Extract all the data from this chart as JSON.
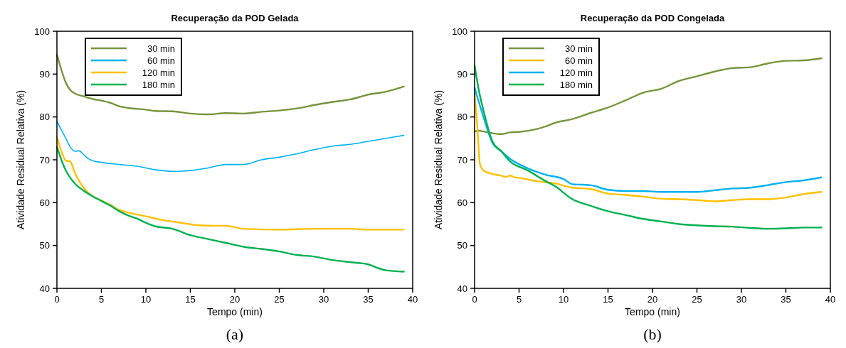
{
  "chart_data": [
    {
      "type": "line",
      "title": "Recuperação da POD Gelada",
      "xlabel": "Tempo (min)",
      "ylabel": "Atividade Residual Relativa (%)",
      "annotations": [
        "(a)"
      ],
      "xlim": [
        0,
        40
      ],
      "xticks": [
        0,
        5,
        10,
        15,
        20,
        25,
        30,
        35,
        40
      ],
      "ylim": [
        40,
        100
      ],
      "yticks": [
        40,
        50,
        60,
        70,
        80,
        90,
        100
      ],
      "grid": false,
      "legend": "top left",
      "marker": "none",
      "line_style": "solid",
      "series": [
        {
          "name": "30 min",
          "color": "#77933c",
          "x": [
            0,
            0.5,
            1,
            1.5,
            2,
            3,
            4,
            5,
            6,
            7,
            8,
            10,
            11,
            13,
            15,
            17,
            19,
            21,
            23,
            25,
            27,
            29,
            31,
            33,
            35,
            37,
            39
          ],
          "values": [
            94.5,
            91,
            88,
            86.3,
            85.5,
            84.8,
            84.2,
            83.8,
            83.3,
            82.5,
            82.1,
            81.7,
            81.4,
            81.3,
            80.8,
            80.6,
            80.9,
            80.8,
            81.2,
            81.5,
            82,
            82.8,
            83.5,
            84.1,
            85.2,
            85.9,
            87.1
          ]
        },
        {
          "name": "60 min",
          "color": "#00b0f0",
          "x": [
            0,
            0.5,
            1,
            1.5,
            2,
            2.5,
            3,
            3.5,
            4,
            5,
            7,
            9,
            11,
            13,
            15,
            17,
            19,
            21,
            23,
            25,
            27,
            29,
            31,
            33,
            35,
            37,
            39
          ],
          "values": [
            79,
            77,
            75,
            73,
            72,
            72.1,
            71.2,
            70.3,
            69.8,
            69.4,
            68.9,
            68.5,
            67.7,
            67.3,
            67.5,
            68.1,
            68.9,
            68.9,
            70,
            70.6,
            71.4,
            72.4,
            73.2,
            73.6,
            74.3,
            75,
            75.7
          ]
        },
        {
          "name": "120 min",
          "color": "#ffc000",
          "x": [
            0,
            0.5,
            1,
            1.5,
            2,
            3,
            4,
            5,
            6,
            7,
            8,
            10,
            12,
            14,
            16,
            18,
            19,
            21,
            25,
            29,
            33,
            35,
            39
          ],
          "values": [
            75.3,
            72,
            69.8,
            69.6,
            67,
            63.5,
            61.5,
            60.5,
            59.5,
            58.3,
            57.7,
            56.8,
            55.9,
            55.3,
            54.7,
            54.6,
            54.6,
            53.9,
            53.7,
            53.9,
            53.9,
            53.7,
            53.7
          ]
        },
        {
          "name": "180 min",
          "color": "#00b050",
          "x": [
            0,
            0.5,
            1,
            2,
            3,
            4,
            5,
            6,
            7,
            8,
            9,
            10,
            11,
            13,
            15,
            17,
            19,
            21,
            23,
            25,
            27,
            29,
            31,
            33,
            35,
            36,
            37,
            39
          ],
          "values": [
            73,
            70,
            67.5,
            64.5,
            62.8,
            61.5,
            60.4,
            59.3,
            58,
            57,
            56.3,
            55.3,
            54.5,
            53.9,
            52.4,
            51.5,
            50.6,
            49.7,
            49.2,
            48.6,
            47.8,
            47.4,
            46.6,
            46.1,
            45.6,
            44.8,
            44.2,
            43.9
          ]
        }
      ]
    },
    {
      "type": "line",
      "title": "Recuperação da POD Congelada",
      "xlabel": "Tempo (min)",
      "ylabel": "Atividade Residual Relativa (%)",
      "annotations": [
        "(b)"
      ],
      "xlim": [
        0,
        40
      ],
      "xticks": [
        0,
        5,
        10,
        15,
        20,
        25,
        30,
        35,
        40
      ],
      "ylim": [
        40,
        100
      ],
      "yticks": [
        40,
        50,
        60,
        70,
        80,
        90,
        100
      ],
      "grid": false,
      "legend": "top left",
      "marker": "none",
      "line_style": "solid",
      "series": [
        {
          "name": "30 min",
          "color": "#77933c",
          "x": [
            0,
            0.5,
            1,
            2,
            3,
            4,
            5,
            7,
            8,
            9,
            11,
            13,
            15,
            17,
            19,
            21,
            23,
            25,
            27,
            29,
            31,
            33,
            35,
            37,
            39
          ],
          "values": [
            76.6,
            76.8,
            76.6,
            76.2,
            76,
            76.4,
            76.5,
            77.2,
            77.8,
            78.6,
            79.5,
            80.9,
            82.2,
            83.9,
            85.7,
            86.6,
            88.4,
            89.5,
            90.6,
            91.4,
            91.6,
            92.5,
            93.1,
            93.2,
            93.7
          ]
        },
        {
          "name": "60 min",
          "color": "#ffc000",
          "x": [
            0,
            0.3,
            0.6,
            1,
            2,
            3,
            3.5,
            4,
            4.5,
            5,
            7,
            9,
            11,
            13,
            15,
            17,
            19,
            21,
            23,
            25,
            27,
            29,
            31,
            33,
            35,
            37,
            39
          ],
          "values": [
            85.6,
            78,
            69,
            67.5,
            66.7,
            66.3,
            66,
            66.3,
            65.9,
            65.8,
            65,
            64.5,
            63.5,
            63.2,
            62.1,
            61.8,
            61.4,
            60.9,
            60.8,
            60.6,
            60.3,
            60.6,
            60.8,
            60.8,
            61.2,
            62,
            62.5
          ]
        },
        {
          "name": "120 min",
          "color": "#00b0f0",
          "x": [
            0,
            1,
            2,
            3,
            4,
            6,
            8,
            10,
            11,
            13,
            15,
            17,
            19,
            21,
            23,
            25,
            27,
            29,
            31,
            33,
            35,
            37,
            39
          ],
          "values": [
            86.8,
            80,
            74,
            72,
            70.2,
            68,
            66.5,
            65.5,
            64.3,
            64.1,
            63,
            62.7,
            62.7,
            62.5,
            62.5,
            62.5,
            62.9,
            63.3,
            63.5,
            64.1,
            64.8,
            65.2,
            65.9
          ]
        },
        {
          "name": "180 min",
          "color": "#00b050",
          "x": [
            0,
            0.5,
            1,
            2,
            3,
            4,
            6,
            8,
            9,
            11,
            13,
            15,
            17,
            19,
            21,
            23,
            25,
            27,
            29,
            31,
            33,
            35,
            37,
            39
          ],
          "values": [
            92,
            86,
            81.5,
            74.3,
            72,
            69.6,
            67.5,
            65,
            63.9,
            60.8,
            59.3,
            58,
            57.1,
            56.2,
            55.6,
            55,
            54.7,
            54.5,
            54.4,
            54.1,
            53.9,
            54,
            54.2,
            54.2
          ]
        }
      ]
    }
  ]
}
